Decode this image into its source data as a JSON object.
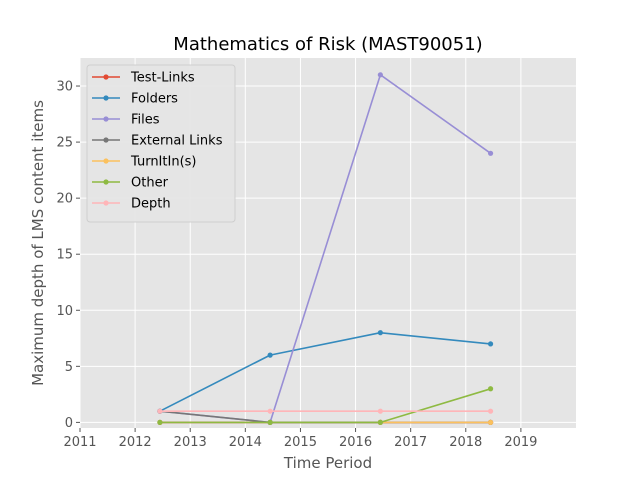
{
  "chart_data": {
    "type": "line",
    "title": "Mathematics of Risk (MAST90051)",
    "xlabel": "Time Period",
    "ylabel": "Maximum depth of LMS content items",
    "xlim": [
      2011.0,
      2020.0
    ],
    "ylim": [
      -0.5,
      32.5
    ],
    "x_ticks": [
      2011,
      2012,
      2013,
      2014,
      2015,
      2016,
      2017,
      2018,
      2019
    ],
    "y_ticks": [
      0,
      5,
      10,
      15,
      20,
      25,
      30
    ],
    "grid": true,
    "legend_position": "upper-left",
    "x": [
      2012.45,
      2014.45,
      2016.45,
      2018.45
    ],
    "series": [
      {
        "name": "Test-Links",
        "color": "#E24A33",
        "values": [
          0,
          0,
          0,
          0
        ]
      },
      {
        "name": "Folders",
        "color": "#348ABD",
        "values": [
          1,
          6,
          8,
          7
        ]
      },
      {
        "name": "Files",
        "color": "#988ED5",
        "values": [
          1,
          0,
          31,
          24
        ]
      },
      {
        "name": "External Links",
        "color": "#777777",
        "values": [
          1,
          0,
          0,
          0
        ]
      },
      {
        "name": "TurnItIn(s)",
        "color": "#FBC15E",
        "values": [
          null,
          null,
          0,
          0
        ]
      },
      {
        "name": "Other",
        "color": "#8EBA42",
        "values": [
          0,
          0,
          0,
          3
        ]
      },
      {
        "name": "Depth",
        "color": "#FFB5B8",
        "values": [
          1,
          1,
          1,
          1
        ]
      }
    ]
  }
}
